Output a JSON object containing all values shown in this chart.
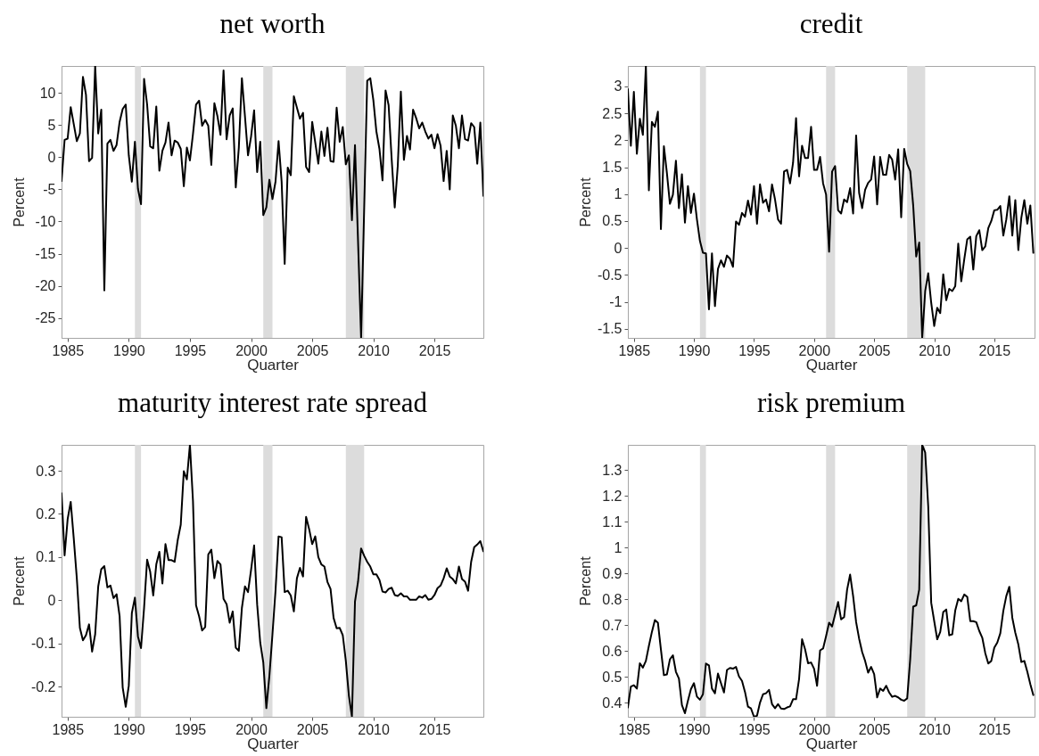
{
  "chart_data": [
    {
      "type": "line",
      "title": "net worth",
      "xlabel": "Quarter",
      "ylabel": "Percent",
      "xlim": [
        1984.5,
        2019
      ],
      "ylim": [
        -28.1,
        14.2
      ],
      "xticks": [
        1985,
        1990,
        1995,
        2000,
        2005,
        2010,
        2015
      ],
      "yticks": [
        -25,
        -20,
        -15,
        -10,
        -5,
        0,
        5,
        10
      ],
      "bands": [
        {
          "axis": "x",
          "from": 1990.5,
          "to": 1991,
          "color": "#dcdcdc"
        },
        {
          "axis": "x",
          "from": 2001,
          "to": 2001.75,
          "color": "#dcdcdc"
        },
        {
          "axis": "x",
          "from": 2007.75,
          "to": 2009.25,
          "color": "#dcdcdc"
        }
      ],
      "x": [
        1984.5,
        1984.75,
        1985,
        1985.25,
        1985.75,
        1986,
        1986.25,
        1986.5,
        1986.75,
        1987,
        1987.25,
        1987.5,
        1987.75,
        1988,
        1988.25,
        1988.5,
        1988.75,
        1989,
        1989.25,
        1989.5,
        1989.75,
        1990,
        1990.25,
        1990.5,
        1990.75,
        1991,
        1991.25,
        1991.5,
        1991.75,
        1992,
        1992.25,
        1992.5,
        1992.75,
        1993,
        1993.25,
        1993.5,
        1993.75,
        1994,
        1994.25,
        1994.5,
        1994.75,
        1995,
        1995.25,
        1995.5,
        1995.75,
        1996,
        1996.25,
        1996.5,
        1996.75,
        1997,
        1997.25,
        1997.5,
        1997.75,
        1998,
        1998.25,
        1998.5,
        1998.75,
        1999,
        1999.25,
        1999.5,
        1999.75,
        2000,
        2000.25,
        2000.5,
        2000.75,
        2001,
        2001.25,
        2001.5,
        2001.75,
        2002,
        2002.25,
        2002.5,
        2002.75,
        2003,
        2003.25,
        2003.5,
        2003.75,
        2004,
        2004.25,
        2004.5,
        2004.75,
        2005,
        2005.25,
        2005.5,
        2005.75,
        2006,
        2006.25,
        2006.5,
        2006.75,
        2007,
        2007.25,
        2007.5,
        2007.75,
        2008,
        2008.25,
        2008.5,
        2009,
        2009.5,
        2009.75,
        2010,
        2010.25,
        2010.5,
        2010.75,
        2011,
        2011.25,
        2011.5,
        2011.75,
        2012,
        2012.25,
        2012.5,
        2012.75,
        2013,
        2013.25,
        2013.5,
        2013.75,
        2014,
        2014.25,
        2014.5,
        2014.75,
        2015,
        2015.25,
        2015.5,
        2015.75,
        2016,
        2016.25,
        2016.5,
        2016.75,
        2017,
        2017.25,
        2017.5,
        2017.75,
        2018,
        2018.25,
        2018.5,
        2018.75,
        2019
      ],
      "series": [
        {
          "color": "#000000",
          "values": [
            -3.7,
            2.7,
            2.9,
            7.8,
            2.5,
            3.7,
            12.5,
            9.7,
            -0.6,
            -0.1,
            14.2,
            3.7,
            7.4,
            -20.7,
            2.1,
            2.7,
            1.0,
            1.9,
            5.5,
            7.5,
            8.2,
            0.3,
            -3.8,
            2.4,
            -4.9,
            -7.3,
            12.2,
            8.2,
            1.7,
            1.4,
            7.9,
            -2.1,
            1.0,
            2.3,
            5.4,
            0.3,
            2.6,
            2.3,
            1.3,
            -4.5,
            1.5,
            -0.5,
            3.6,
            8.2,
            8.8,
            4.9,
            5.8,
            4.9,
            -1.2,
            8.4,
            6.4,
            3.5,
            13.5,
            2.8,
            6.5,
            7.6,
            -4.7,
            1.5,
            12.3,
            6.4,
            0.3,
            3.2,
            7.3,
            -2.3,
            2.4,
            -9.0,
            -7.8,
            -3.5,
            -6.5,
            -3.8,
            2.5,
            -3.8,
            -16.6,
            -1.6,
            -2.8,
            9.5,
            7.7,
            6.0,
            6.9,
            -1.5,
            -2.3,
            5.5,
            2.3,
            -1.0,
            4.0,
            0.2,
            4.6,
            -0.6,
            -0.7,
            7.7,
            2.4,
            4.7,
            -1.1,
            0.3,
            -9.8,
            1.9,
            -28.1,
            11.9,
            12.3,
            8.9,
            4.0,
            1.3,
            -3.6,
            10.4,
            8.1,
            -0.3,
            -7.8,
            -1.3,
            10.2,
            -0.4,
            3.3,
            1.2,
            7.4,
            6.1,
            4.5,
            5.4,
            4.0,
            2.9,
            3.5,
            1.4,
            3.6,
            1.8,
            -3.7,
            1.0,
            -5.0,
            6.5,
            4.9,
            1.4,
            6.5,
            2.8,
            2.6,
            5.3,
            4.7,
            -1.0,
            5.4,
            -6.0
          ]
        }
      ]
    },
    {
      "type": "line",
      "title": "credit",
      "xlabel": "Quarter",
      "ylabel": "Percent",
      "xlim": [
        1984.5,
        2018.35
      ],
      "ylim": [
        -1.67,
        3.38
      ],
      "xticks": [
        1985,
        1990,
        1995,
        2000,
        2005,
        2010,
        2015
      ],
      "yticks": [
        -1.5,
        -1,
        -0.5,
        0,
        0.5,
        1,
        1.5,
        2,
        2.5,
        3
      ],
      "bands": [
        {
          "axis": "x",
          "from": 1990.5,
          "to": 1991,
          "color": "#dcdcdc"
        },
        {
          "axis": "x",
          "from": 2001,
          "to": 2001.75,
          "color": "#dcdcdc"
        },
        {
          "axis": "x",
          "from": 2007.75,
          "to": 2009.25,
          "color": "#dcdcdc"
        }
      ],
      "x": [
        1984.5,
        1984.75,
        1985,
        1985.25,
        1985.5,
        1985.75,
        1986,
        1986.25,
        1986.5,
        1986.75,
        1987,
        1987.25,
        1987.5,
        1987.75,
        1988,
        1988.25,
        1988.5,
        1988.75,
        1989,
        1989.25,
        1989.5,
        1989.75,
        1990,
        1990.25,
        1990.5,
        1990.75,
        1991,
        1991.25,
        1991.5,
        1991.75,
        1992,
        1992.25,
        1992.5,
        1992.75,
        1993,
        1993.25,
        1993.5,
        1993.75,
        1994,
        1994.25,
        1994.5,
        1994.75,
        1995,
        1995.25,
        1995.5,
        1995.75,
        1996,
        1996.25,
        1996.5,
        1996.75,
        1997,
        1997.25,
        1997.5,
        1997.75,
        1998,
        1998.25,
        1998.5,
        1998.75,
        1999,
        1999.25,
        1999.5,
        1999.75,
        2000,
        2000.25,
        2000.5,
        2000.75,
        2001,
        2001.25,
        2001.5,
        2001.75,
        2002,
        2002.25,
        2002.5,
        2002.75,
        2003,
        2003.25,
        2003.5,
        2003.75,
        2004,
        2004.25,
        2004.5,
        2004.75,
        2005,
        2005.25,
        2005.5,
        2005.75,
        2006,
        2006.25,
        2006.5,
        2006.75,
        2007,
        2007.25,
        2007.5,
        2007.75,
        2008,
        2008.25,
        2008.5,
        2008.75,
        2009,
        2009.25,
        2009.5,
        2009.75,
        2010,
        2010.25,
        2010.5,
        2010.75,
        2011,
        2011.25,
        2011.5,
        2011.75,
        2012,
        2012.25,
        2012.5,
        2012.75,
        2013,
        2013.25,
        2013.5,
        2013.75,
        2014,
        2014.25,
        2014.5,
        2014.75,
        2015,
        2015.25,
        2015.5,
        2015.75,
        2016,
        2016.25,
        2016.5,
        2016.75,
        2017,
        2017.25,
        2017.5,
        2017.75,
        2018,
        2018.25
      ],
      "series": [
        {
          "color": "#000000",
          "values": [
            2.95,
            1.9,
            2.9,
            1.75,
            2.4,
            2.1,
            3.38,
            1.07,
            2.34,
            2.25,
            2.53,
            0.35,
            1.89,
            1.39,
            0.82,
            0.99,
            1.62,
            0.74,
            1.37,
            0.47,
            1.15,
            0.65,
            1.01,
            0.53,
            0.13,
            -0.09,
            -0.1,
            -1.14,
            -0.1,
            -1.08,
            -0.39,
            -0.23,
            -0.35,
            -0.14,
            -0.2,
            -0.35,
            0.49,
            0.43,
            0.65,
            0.58,
            0.88,
            0.62,
            1.15,
            0.45,
            1.18,
            0.84,
            0.9,
            0.68,
            1.18,
            0.9,
            0.53,
            0.45,
            1.42,
            1.45,
            1.2,
            1.58,
            2.41,
            1.33,
            1.9,
            1.67,
            1.67,
            2.25,
            1.45,
            1.45,
            1.69,
            1.2,
            0.99,
            -0.07,
            1.42,
            1.52,
            0.7,
            0.64,
            0.9,
            0.85,
            1.11,
            0.64,
            2.09,
            1.02,
            0.74,
            1.08,
            1.21,
            1.27,
            1.7,
            0.81,
            1.69,
            1.36,
            1.36,
            1.73,
            1.64,
            1.27,
            1.83,
            0.57,
            1.84,
            1.56,
            1.43,
            0.79,
            -0.16,
            0.1,
            -1.67,
            -0.8,
            -0.47,
            -1.02,
            -1.45,
            -1.11,
            -1.21,
            -0.49,
            -0.97,
            -0.76,
            -0.8,
            -0.71,
            0.08,
            -0.62,
            -0.21,
            0.16,
            0.21,
            -0.4,
            0.22,
            0.33,
            -0.04,
            0.03,
            0.37,
            0.5,
            0.7,
            0.71,
            0.78,
            0.23,
            0.53,
            0.96,
            0.23,
            0.89,
            -0.04,
            0.56,
            0.89,
            0.45,
            0.79,
            -0.09
          ]
        }
      ]
    },
    {
      "type": "line",
      "title": "maturity interest rate spread",
      "xlabel": "Quarter",
      "ylabel": "Percent",
      "xlim": [
        1984.5,
        2019
      ],
      "ylim": [
        -0.27,
        0.36
      ],
      "xticks": [
        1985,
        1990,
        1995,
        2000,
        2005,
        2010,
        2015
      ],
      "yticks": [
        -0.2,
        -0.1,
        0,
        0.1,
        0.2,
        0.3
      ],
      "bands": [
        {
          "axis": "x",
          "from": 1990.5,
          "to": 1991,
          "color": "#dcdcdc"
        },
        {
          "axis": "x",
          "from": 2001,
          "to": 2001.75,
          "color": "#dcdcdc"
        },
        {
          "axis": "x",
          "from": 2007.75,
          "to": 2009.25,
          "color": "#dcdcdc"
        }
      ],
      "x": [
        1984.5,
        1984.75,
        1985,
        1985.25,
        1985.5,
        1985.75,
        1986,
        1986.25,
        1986.5,
        1986.75,
        1987,
        1987.25,
        1987.5,
        1987.75,
        1988,
        1988.25,
        1988.5,
        1988.75,
        1989,
        1989.25,
        1989.5,
        1989.75,
        1990,
        1990.25,
        1990.5,
        1990.75,
        1991,
        1991.25,
        1991.5,
        1991.75,
        1992,
        1992.25,
        1992.5,
        1992.75,
        1993,
        1993.25,
        1993.5,
        1993.75,
        1994,
        1994.25,
        1994.5,
        1994.75,
        1995,
        1995.25,
        1995.5,
        1995.75,
        1996,
        1996.25,
        1996.5,
        1996.75,
        1997,
        1997.25,
        1997.5,
        1997.75,
        1998,
        1998.25,
        1998.5,
        1998.75,
        1999,
        1999.25,
        1999.5,
        1999.75,
        2000,
        2000.25,
        2000.5,
        2000.75,
        2001,
        2001.25,
        2001.5,
        2001.75,
        2002,
        2002.25,
        2002.5,
        2002.75,
        2003,
        2003.25,
        2003.5,
        2003.75,
        2004,
        2004.25,
        2004.5,
        2004.75,
        2005,
        2005.25,
        2005.5,
        2005.75,
        2006,
        2006.25,
        2006.5,
        2006.75,
        2007,
        2007.25,
        2007.5,
        2007.75,
        2008,
        2008.25,
        2008.5,
        2008.75,
        2009,
        2009.25,
        2009.5,
        2009.75,
        2010,
        2010.25,
        2010.5,
        2010.75,
        2011,
        2011.25,
        2011.5,
        2011.75,
        2012,
        2012.25,
        2012.5,
        2012.75,
        2013,
        2013.25,
        2013.5,
        2013.75,
        2014,
        2014.25,
        2014.5,
        2014.75,
        2015,
        2015.25,
        2015.5,
        2015.75,
        2016,
        2016.25,
        2016.5,
        2016.75,
        2017,
        2017.25,
        2017.5,
        2017.75,
        2018,
        2018.25,
        2018.5,
        2018.75,
        2019
      ],
      "series": [
        {
          "color": "#000000",
          "values": [
            0.248,
            0.104,
            0.188,
            0.228,
            0.143,
            0.051,
            -0.064,
            -0.093,
            -0.081,
            -0.056,
            -0.119,
            -0.079,
            0.032,
            0.072,
            0.079,
            0.03,
            0.034,
            0.005,
            0.014,
            -0.037,
            -0.202,
            -0.247,
            -0.198,
            -0.03,
            0.006,
            -0.084,
            -0.111,
            -0.018,
            0.094,
            0.066,
            0.011,
            0.083,
            0.112,
            0.039,
            0.13,
            0.093,
            0.093,
            0.089,
            0.139,
            0.175,
            0.299,
            0.28,
            0.36,
            0.23,
            -0.012,
            -0.037,
            -0.07,
            -0.062,
            0.106,
            0.117,
            0.051,
            0.091,
            0.083,
            0.003,
            -0.009,
            -0.052,
            -0.026,
            -0.11,
            -0.117,
            -0.018,
            0.032,
            0.019,
            0.07,
            0.127,
            -0.01,
            -0.098,
            -0.144,
            -0.25,
            -0.175,
            -0.079,
            0.022,
            0.148,
            0.146,
            0.019,
            0.022,
            0.011,
            -0.026,
            0.051,
            0.075,
            0.055,
            0.193,
            0.165,
            0.13,
            0.148,
            0.1,
            0.083,
            0.078,
            0.042,
            0.026,
            -0.041,
            -0.065,
            -0.064,
            -0.081,
            -0.14,
            -0.221,
            -0.27,
            -0.003,
            0.043,
            0.12,
            0.103,
            0.089,
            0.078,
            0.06,
            0.06,
            0.047,
            0.02,
            0.018,
            0.026,
            0.029,
            0.012,
            0.01,
            0.016,
            0.009,
            0.009,
            0.001,
            0.001,
            0.001,
            0.009,
            0.006,
            0.012,
            0.001,
            0.003,
            0.012,
            0.028,
            0.034,
            0.051,
            0.074,
            0.055,
            0.049,
            0.039,
            0.078,
            0.049,
            0.043,
            0.022,
            0.089,
            0.123,
            0.129,
            0.137,
            0.113
          ]
        }
      ]
    },
    {
      "type": "line",
      "title": "risk premium",
      "xlabel": "Quarter",
      "ylabel": "Percent",
      "xlim": [
        1984.5,
        2018.35
      ],
      "ylim": [
        0.346,
        1.398
      ],
      "xticks": [
        1985,
        1990,
        1995,
        2000,
        2005,
        2010,
        2015
      ],
      "yticks": [
        0.4,
        0.5,
        0.6,
        0.7,
        0.8,
        0.9,
        1,
        1.1,
        1.2,
        1.3
      ],
      "bands": [
        {
          "axis": "x",
          "from": 1990.5,
          "to": 1991,
          "color": "#dcdcdc"
        },
        {
          "axis": "x",
          "from": 2001,
          "to": 2001.75,
          "color": "#dcdcdc"
        },
        {
          "axis": "x",
          "from": 2007.75,
          "to": 2009.25,
          "color": "#dcdcdc"
        }
      ],
      "x": [
        1984.5,
        1984.75,
        1985,
        1985.25,
        1985.5,
        1985.75,
        1986,
        1986.25,
        1986.5,
        1986.75,
        1987,
        1987.25,
        1987.5,
        1987.75,
        1988,
        1988.25,
        1988.5,
        1988.75,
        1989,
        1989.25,
        1989.5,
        1989.75,
        1990,
        1990.25,
        1990.5,
        1990.75,
        1991,
        1991.25,
        1991.5,
        1991.75,
        1992,
        1992.25,
        1992.5,
        1992.75,
        1993,
        1993.25,
        1993.5,
        1993.75,
        1994,
        1994.25,
        1994.5,
        1994.75,
        1995,
        1995.25,
        1995.5,
        1995.75,
        1996,
        1996.25,
        1996.5,
        1996.75,
        1997,
        1997.25,
        1997.5,
        1997.75,
        1998,
        1998.25,
        1998.5,
        1998.75,
        1999,
        1999.25,
        1999.5,
        1999.75,
        2000,
        2000.25,
        2000.5,
        2000.75,
        2001,
        2001.25,
        2001.5,
        2001.75,
        2002,
        2002.25,
        2002.5,
        2002.75,
        2003,
        2003.25,
        2003.5,
        2003.75,
        2004,
        2004.25,
        2004.5,
        2004.75,
        2005,
        2005.25,
        2005.5,
        2005.75,
        2006,
        2006.25,
        2006.5,
        2006.75,
        2007,
        2007.25,
        2007.5,
        2007.75,
        2008,
        2008.25,
        2008.5,
        2008.75,
        2009,
        2009.25,
        2009.5,
        2009.75,
        2010,
        2010.25,
        2010.5,
        2010.75,
        2011,
        2011.25,
        2011.5,
        2011.75,
        2012,
        2012.25,
        2012.5,
        2012.75,
        2013,
        2013.25,
        2013.5,
        2013.75,
        2014,
        2014.25,
        2014.5,
        2014.75,
        2015,
        2015.25,
        2015.5,
        2015.75,
        2016,
        2016.25,
        2016.5,
        2016.75,
        2017,
        2017.25,
        2017.5,
        2017.75,
        2018,
        2018.25
      ],
      "series": [
        {
          "color": "#000000",
          "values": [
            0.382,
            0.463,
            0.468,
            0.455,
            0.553,
            0.536,
            0.562,
            0.62,
            0.674,
            0.72,
            0.71,
            0.607,
            0.507,
            0.51,
            0.568,
            0.584,
            0.52,
            0.494,
            0.391,
            0.36,
            0.408,
            0.453,
            0.476,
            0.424,
            0.412,
            0.433,
            0.552,
            0.545,
            0.455,
            0.437,
            0.513,
            0.476,
            0.44,
            0.527,
            0.535,
            0.532,
            0.539,
            0.502,
            0.485,
            0.442,
            0.385,
            0.378,
            0.346,
            0.35,
            0.401,
            0.433,
            0.437,
            0.45,
            0.395,
            0.379,
            0.395,
            0.378,
            0.376,
            0.382,
            0.386,
            0.414,
            0.414,
            0.491,
            0.646,
            0.607,
            0.553,
            0.556,
            0.532,
            0.466,
            0.603,
            0.61,
            0.658,
            0.71,
            0.695,
            0.742,
            0.79,
            0.723,
            0.732,
            0.838,
            0.896,
            0.813,
            0.712,
            0.648,
            0.597,
            0.562,
            0.517,
            0.539,
            0.511,
            0.421,
            0.455,
            0.446,
            0.466,
            0.44,
            0.423,
            0.427,
            0.421,
            0.412,
            0.408,
            0.417,
            0.568,
            0.772,
            0.777,
            0.838,
            1.398,
            1.368,
            1.16,
            0.787,
            0.716,
            0.646,
            0.674,
            0.751,
            0.761,
            0.661,
            0.665,
            0.757,
            0.802,
            0.793,
            0.819,
            0.81,
            0.716,
            0.716,
            0.712,
            0.678,
            0.652,
            0.592,
            0.552,
            0.562,
            0.613,
            0.633,
            0.669,
            0.755,
            0.813,
            0.849,
            0.729,
            0.671,
            0.626,
            0.558,
            0.562,
            0.52,
            0.472,
            0.43
          ]
        }
      ]
    }
  ]
}
